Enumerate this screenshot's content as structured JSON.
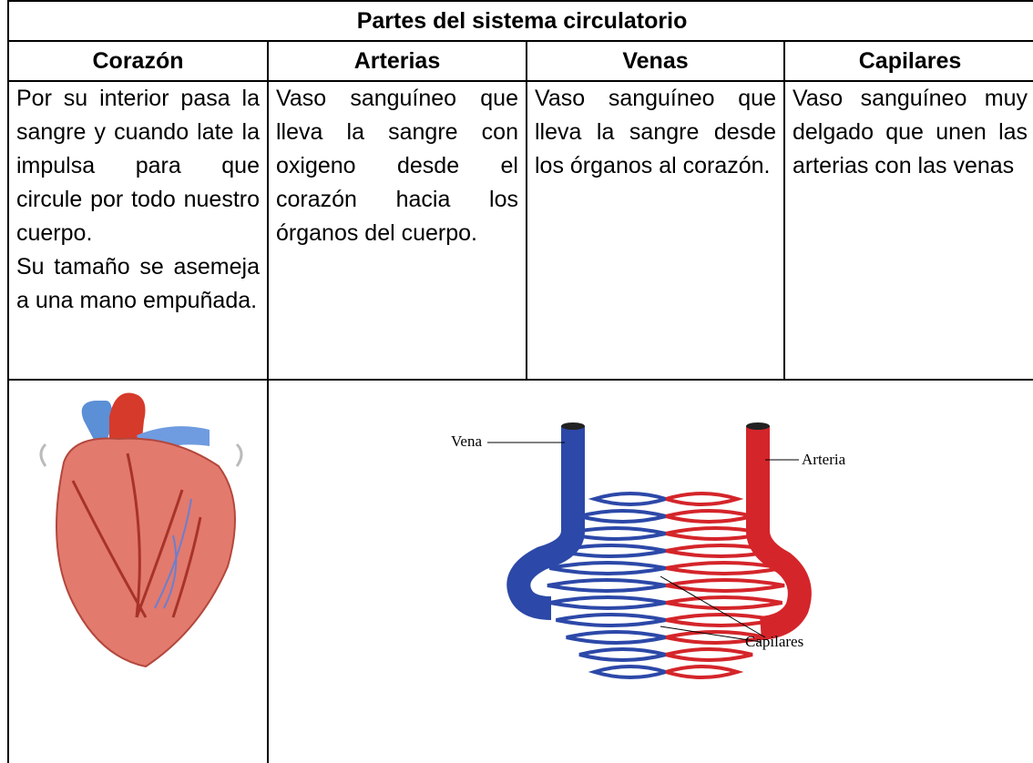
{
  "table": {
    "title": "Partes del sistema circulatorio",
    "columns": [
      {
        "header": "Corazón",
        "paragraphs": [
          "Por su interior pasa la sangre y cuando late la impulsa para que circule por todo nuestro cuerpo.",
          "Su tamaño se asemeja a una mano empuñada."
        ]
      },
      {
        "header": "Arterias",
        "paragraphs": [
          "Vaso sanguíneo que lleva la sangre con oxigeno desde el corazón hacia los órganos del cuerpo."
        ]
      },
      {
        "header": "Venas",
        "paragraphs": [
          "Vaso sanguíneo que lleva la sangre desde los órganos al corazón."
        ]
      },
      {
        "header": "Capilares",
        "paragraphs": [
          "Vaso sanguíneo muy delgado que unen las arterias con las venas"
        ]
      }
    ],
    "diagram": {
      "labels": {
        "vein": "Vena",
        "artery": "Arteria",
        "capillaries": "Capilares"
      }
    }
  }
}
